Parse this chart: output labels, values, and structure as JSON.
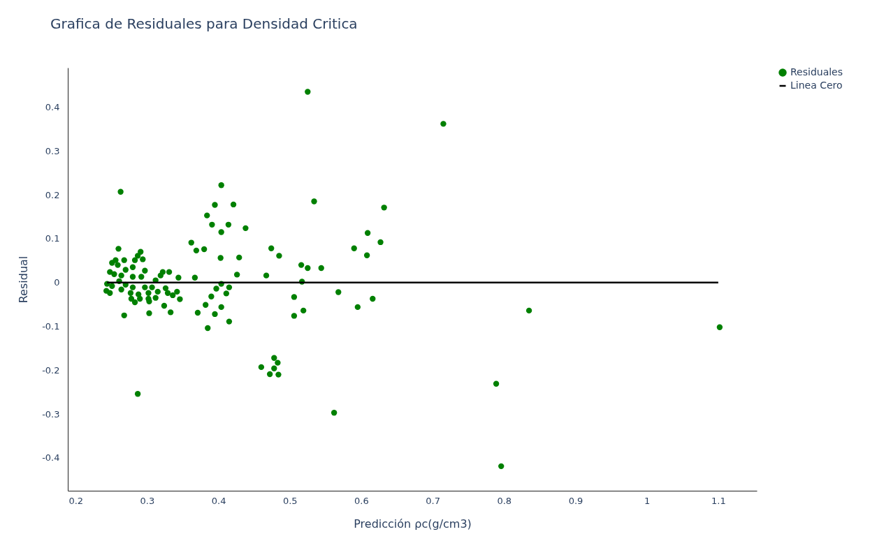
{
  "chart_data": {
    "type": "scatter",
    "title": "Grafica de Residuales  para  Densidad Critica",
    "xlabel": "Predicción ρc(g/cm3)",
    "ylabel": "Residual",
    "xlim": [
      0.189,
      1.154
    ],
    "ylim": [
      -0.475,
      0.49
    ],
    "xticks": [
      0.2,
      0.3,
      0.4,
      0.5,
      0.6,
      0.7,
      0.8,
      0.9,
      1,
      1.1
    ],
    "yticks": [
      -0.4,
      -0.3,
      -0.2,
      -0.1,
      0,
      0.1,
      0.2,
      0.3,
      0.4
    ],
    "legend": "top right",
    "series": [
      {
        "name": "Residuales",
        "type": "scatter",
        "marker": "circle",
        "color": "#008000",
        "x": [
          0.525,
          0.715,
          0.263,
          0.287,
          0.268,
          0.303,
          0.333,
          0.26,
          0.268,
          0.291,
          0.287,
          0.294,
          0.283,
          0.256,
          0.251,
          0.259,
          0.27,
          0.28,
          0.297,
          0.322,
          0.331,
          0.248,
          0.254,
          0.264,
          0.28,
          0.292,
          0.319,
          0.344,
          0.312,
          0.261,
          0.244,
          0.251,
          0.27,
          0.28,
          0.297,
          0.307,
          0.326,
          0.243,
          0.248,
          0.264,
          0.277,
          0.288,
          0.302,
          0.315,
          0.329,
          0.342,
          0.278,
          0.29,
          0.302,
          0.312,
          0.336,
          0.346,
          0.283,
          0.303,
          0.324,
          0.404,
          0.395,
          0.421,
          0.384,
          0.391,
          0.414,
          0.404,
          0.438,
          0.362,
          0.369,
          0.38,
          0.403,
          0.429,
          0.426,
          0.367,
          0.467,
          0.474,
          0.485,
          0.534,
          0.632,
          0.609,
          0.627,
          0.59,
          0.608,
          0.516,
          0.525,
          0.544,
          0.517,
          0.404,
          0.397,
          0.415,
          0.411,
          0.39,
          0.382,
          0.404,
          0.371,
          0.395,
          0.415,
          0.385,
          0.506,
          0.506,
          0.519,
          0.568,
          0.595,
          0.616,
          0.46,
          0.478,
          0.483,
          0.478,
          0.472,
          0.484,
          0.562,
          0.835,
          1.102,
          0.789,
          0.796
        ],
        "values": [
          0.435,
          0.362,
          0.207,
          -0.254,
          -0.075,
          -0.07,
          -0.068,
          0.077,
          0.051,
          0.07,
          0.061,
          0.053,
          0.051,
          0.051,
          0.045,
          0.04,
          0.029,
          0.035,
          0.027,
          0.024,
          0.024,
          0.024,
          0.019,
          0.016,
          0.013,
          0.013,
          0.016,
          0.011,
          0.005,
          0.003,
          -0.003,
          -0.008,
          -0.005,
          -0.011,
          -0.011,
          -0.011,
          -0.013,
          -0.019,
          -0.024,
          -0.016,
          -0.024,
          -0.027,
          -0.024,
          -0.021,
          -0.024,
          -0.021,
          -0.037,
          -0.037,
          -0.037,
          -0.035,
          -0.029,
          -0.038,
          -0.045,
          -0.043,
          -0.053,
          0.222,
          0.177,
          0.178,
          0.153,
          0.132,
          0.132,
          0.115,
          0.124,
          0.091,
          0.073,
          0.076,
          0.056,
          0.057,
          0.018,
          0.011,
          0.016,
          0.078,
          0.061,
          0.185,
          0.171,
          0.113,
          0.092,
          0.078,
          0.062,
          0.04,
          0.033,
          0.033,
          0.002,
          -0.003,
          -0.014,
          -0.011,
          -0.025,
          -0.032,
          -0.051,
          -0.056,
          -0.069,
          -0.072,
          -0.089,
          -0.104,
          -0.033,
          -0.076,
          -0.064,
          -0.022,
          -0.056,
          -0.037,
          -0.193,
          -0.172,
          -0.183,
          -0.196,
          -0.209,
          -0.21,
          -0.297,
          -0.064,
          -0.102,
          -0.231,
          -0.419
        ]
      },
      {
        "name": "Linea Cero",
        "type": "line",
        "marker": "none",
        "color": "#000000",
        "x": [
          0.244,
          1.1
        ],
        "values": [
          0,
          0
        ]
      }
    ]
  }
}
